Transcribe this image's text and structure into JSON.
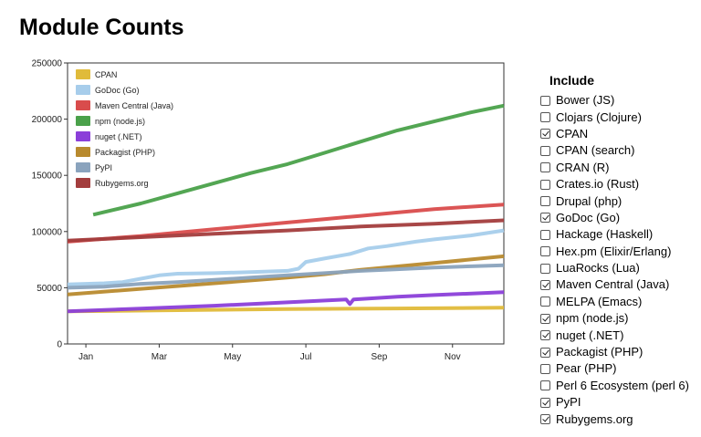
{
  "page": {
    "title": "Module Counts"
  },
  "include": {
    "title": "Include",
    "items": [
      {
        "label": "Bower (JS)",
        "checked": false
      },
      {
        "label": "Clojars (Clojure)",
        "checked": false
      },
      {
        "label": "CPAN",
        "checked": true
      },
      {
        "label": "CPAN (search)",
        "checked": false
      },
      {
        "label": "CRAN (R)",
        "checked": false
      },
      {
        "label": "Crates.io (Rust)",
        "checked": false
      },
      {
        "label": "Drupal (php)",
        "checked": false
      },
      {
        "label": "GoDoc (Go)",
        "checked": true
      },
      {
        "label": "Hackage (Haskell)",
        "checked": false
      },
      {
        "label": "Hex.pm (Elixir/Erlang)",
        "checked": false
      },
      {
        "label": "LuaRocks (Lua)",
        "checked": false
      },
      {
        "label": "Maven Central (Java)",
        "checked": true
      },
      {
        "label": "MELPA (Emacs)",
        "checked": false
      },
      {
        "label": "npm (node.js)",
        "checked": true
      },
      {
        "label": "nuget (.NET)",
        "checked": true
      },
      {
        "label": "Packagist (PHP)",
        "checked": true
      },
      {
        "label": "Pear (PHP)",
        "checked": false
      },
      {
        "label": "Perl 6 Ecosystem (perl 6)",
        "checked": false
      },
      {
        "label": "PyPI",
        "checked": true
      },
      {
        "label": "Rubygems.org",
        "checked": true
      }
    ]
  },
  "chart_data": {
    "type": "line",
    "xlabel": "",
    "ylabel": "",
    "ylim": [
      0,
      250000
    ],
    "y_ticks": [
      0,
      50000,
      100000,
      150000,
      200000,
      250000
    ],
    "y_tick_labels": [
      "0",
      "50000",
      "100000",
      "150000",
      "200000",
      "250000"
    ],
    "x_ticks": [
      "Jan",
      "Mar",
      "May",
      "Jul",
      "Sep",
      "Nov"
    ],
    "x_tick_months": [
      0.5,
      2.5,
      4.5,
      6.5,
      8.5,
      10.5
    ],
    "xlim_months": [
      0,
      11.9
    ],
    "grid": false,
    "legend_position": "top-left",
    "series": [
      {
        "name": "CPAN",
        "color": "#e0bb3a",
        "points": [
          [
            0,
            29000
          ],
          [
            3,
            30000
          ],
          [
            6,
            31000
          ],
          [
            9,
            31600
          ],
          [
            11.9,
            32200
          ]
        ]
      },
      {
        "name": "GoDoc (Go)",
        "color": "#a7cdeb",
        "points": [
          [
            0,
            53000
          ],
          [
            1,
            54000
          ],
          [
            1.5,
            55000
          ],
          [
            2,
            58000
          ],
          [
            2.5,
            61000
          ],
          [
            3,
            62500
          ],
          [
            4,
            63000
          ],
          [
            5,
            64000
          ],
          [
            6,
            65000
          ],
          [
            6.3,
            67000
          ],
          [
            6.5,
            73000
          ],
          [
            7,
            76000
          ],
          [
            7.7,
            80000
          ],
          [
            8.2,
            85000
          ],
          [
            8.7,
            87000
          ],
          [
            9.5,
            91000
          ],
          [
            10,
            93000
          ],
          [
            11,
            96500
          ],
          [
            11.9,
            101000
          ]
        ]
      },
      {
        "name": "Maven Central (Java)",
        "color": "#d94c4c",
        "points": [
          [
            0,
            91000
          ],
          [
            2,
            96000
          ],
          [
            4,
            102000
          ],
          [
            6,
            108000
          ],
          [
            7,
            111000
          ],
          [
            8,
            114000
          ],
          [
            9,
            117000
          ],
          [
            10,
            120000
          ],
          [
            11.9,
            124000
          ]
        ]
      },
      {
        "name": "npm (node.js)",
        "color": "#4aa14a",
        "points": [
          [
            0.7,
            115000
          ],
          [
            2,
            125000
          ],
          [
            3,
            134000
          ],
          [
            4,
            143000
          ],
          [
            5,
            152000
          ],
          [
            6,
            160000
          ],
          [
            7,
            170000
          ],
          [
            8,
            180000
          ],
          [
            9,
            190000
          ],
          [
            10,
            198000
          ],
          [
            11,
            206000
          ],
          [
            11.9,
            212000
          ]
        ]
      },
      {
        "name": "nuget (.NET)",
        "color": "#8b3fd9",
        "points": [
          [
            0,
            29000
          ],
          [
            2,
            31500
          ],
          [
            4,
            34000
          ],
          [
            6,
            37000
          ],
          [
            7.6,
            39500
          ],
          [
            7.7,
            35500
          ],
          [
            7.8,
            39600
          ],
          [
            9,
            42000
          ],
          [
            10,
            43500
          ],
          [
            11.9,
            46000
          ]
        ]
      },
      {
        "name": "Packagist (PHP)",
        "color": "#b88a2e",
        "points": [
          [
            0,
            44000
          ],
          [
            2,
            49000
          ],
          [
            4,
            54000
          ],
          [
            6,
            59000
          ],
          [
            7,
            62000
          ],
          [
            8,
            66000
          ],
          [
            9,
            69000
          ],
          [
            10,
            72000
          ],
          [
            11.9,
            78000
          ]
        ]
      },
      {
        "name": "PyPI",
        "color": "#8aa3bd",
        "points": [
          [
            0,
            50000
          ],
          [
            1,
            51000
          ],
          [
            2,
            53500
          ],
          [
            3,
            55000
          ],
          [
            4,
            57000
          ],
          [
            5,
            59000
          ],
          [
            6,
            61000
          ],
          [
            7,
            63000
          ],
          [
            8,
            65000
          ],
          [
            9,
            66500
          ],
          [
            10,
            68000
          ],
          [
            11.9,
            70000
          ]
        ]
      },
      {
        "name": "Rubygems.org",
        "color": "#a33d3d",
        "points": [
          [
            0,
            92000
          ],
          [
            2,
            95000
          ],
          [
            4,
            98000
          ],
          [
            6,
            101000
          ],
          [
            8,
            104500
          ],
          [
            10,
            107000
          ],
          [
            11.9,
            110000
          ]
        ]
      }
    ]
  }
}
